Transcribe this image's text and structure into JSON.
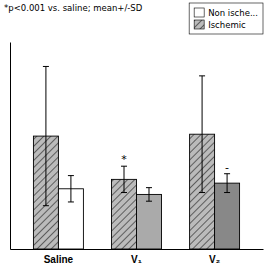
{
  "chart_data": {
    "type": "bar",
    "categories": [
      "Saline",
      "V₁",
      "V₂"
    ],
    "series": [
      {
        "name": "Ischemic",
        "color": "#bbbbbb",
        "values": [
          3.0,
          1.85,
          3.05
        ],
        "errors": [
          1.85,
          0.35,
          1.55
        ],
        "annotations": [
          null,
          "*",
          null
        ]
      },
      {
        "name": "Non ische...",
        "colors": [
          "#ffffff",
          "#aaaaaa",
          "#888888"
        ],
        "values": [
          1.6,
          1.45,
          1.75
        ],
        "errors": [
          0.35,
          0.18,
          0.25
        ],
        "annotations": [
          null,
          null,
          "-"
        ]
      }
    ],
    "annotations": [
      "*p<0.001 vs. saline; mean+/-SD"
    ],
    "ylim": [
      0,
      5.5
    ],
    "tick_labels": "x",
    "legend": "upper right",
    "grid": false
  }
}
